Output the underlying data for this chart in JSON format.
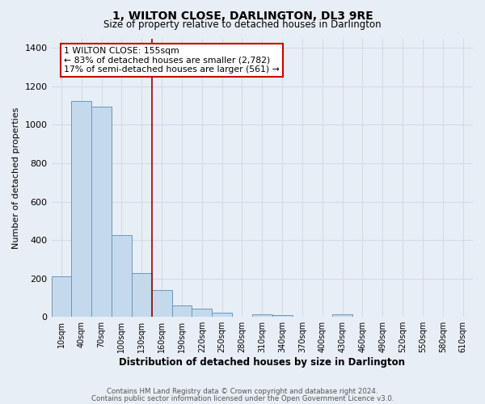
{
  "title": "1, WILTON CLOSE, DARLINGTON, DL3 9RE",
  "subtitle": "Size of property relative to detached houses in Darlington",
  "xlabel": "Distribution of detached houses by size in Darlington",
  "ylabel": "Number of detached properties",
  "footnote1": "Contains HM Land Registry data © Crown copyright and database right 2024.",
  "footnote2": "Contains public sector information licensed under the Open Government Licence v3.0.",
  "bar_labels": [
    "10sqm",
    "40sqm",
    "70sqm",
    "100sqm",
    "130sqm",
    "160sqm",
    "190sqm",
    "220sqm",
    "250sqm",
    "280sqm",
    "310sqm",
    "340sqm",
    "370sqm",
    "400sqm",
    "430sqm",
    "460sqm",
    "490sqm",
    "520sqm",
    "550sqm",
    "580sqm",
    "610sqm"
  ],
  "bar_values": [
    210,
    1125,
    1095,
    425,
    230,
    140,
    60,
    42,
    20,
    0,
    13,
    10,
    0,
    0,
    12,
    0,
    0,
    0,
    0,
    0,
    0
  ],
  "bar_color": "#c5d9ed",
  "bar_edge_color": "#6699bb",
  "ylim": [
    0,
    1450
  ],
  "yticks": [
    0,
    200,
    400,
    600,
    800,
    1000,
    1200,
    1400
  ],
  "vline_x": 4.5,
  "vline_color": "#990000",
  "annotation_title": "1 WILTON CLOSE: 155sqm",
  "annotation_line1": "← 83% of detached houses are smaller (2,782)",
  "annotation_line2": "17% of semi-detached houses are larger (561) →",
  "annotation_box_color": "#ffffff",
  "annotation_box_edge": "#cc0000",
  "grid_color": "#d0dce8",
  "background_color": "#e8eef5"
}
